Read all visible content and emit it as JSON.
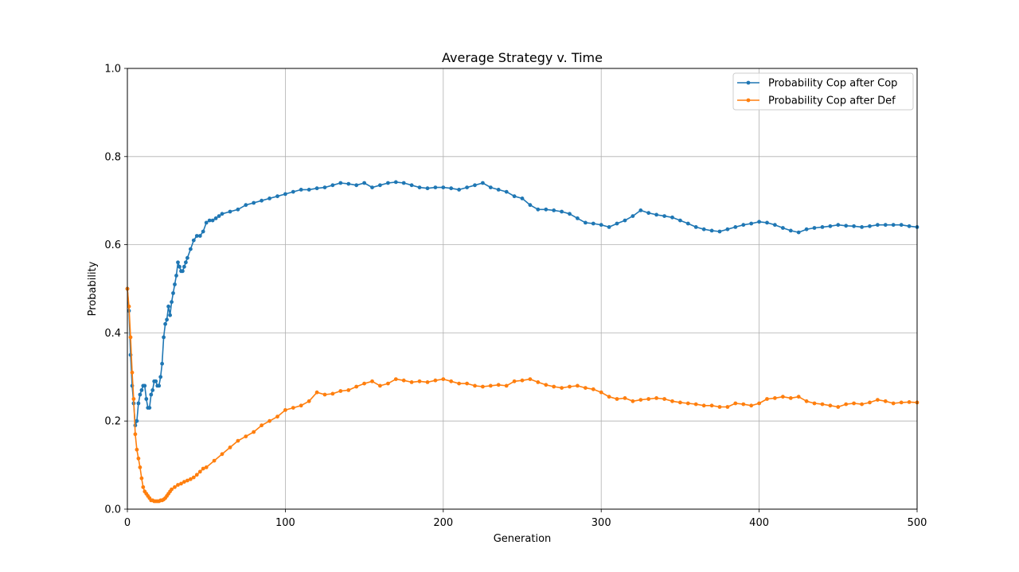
{
  "chart_data": {
    "type": "line",
    "title": "Average Strategy v. Time",
    "xlabel": "Generation",
    "ylabel": "Probability",
    "xlim": [
      0,
      500
    ],
    "ylim": [
      0,
      1.0
    ],
    "x_ticks": [
      "0",
      "100",
      "200",
      "300",
      "400",
      "500"
    ],
    "y_ticks": [
      "0.0",
      "0.2",
      "0.4",
      "0.6",
      "0.8",
      "1.0"
    ],
    "grid": true,
    "legend_position": "top-right",
    "series": [
      {
        "name": "Probability Cop after Cop",
        "color": "#1f77b4",
        "x": [
          0,
          1,
          2,
          3,
          4,
          5,
          6,
          7,
          8,
          9,
          10,
          11,
          12,
          13,
          14,
          15,
          16,
          17,
          18,
          19,
          20,
          21,
          22,
          23,
          24,
          25,
          26,
          27,
          28,
          29,
          30,
          31,
          32,
          33,
          34,
          35,
          36,
          37,
          38,
          40,
          42,
          44,
          46,
          48,
          50,
          52,
          54,
          56,
          58,
          60,
          65,
          70,
          75,
          80,
          85,
          90,
          95,
          100,
          105,
          110,
          115,
          120,
          125,
          130,
          135,
          140,
          145,
          150,
          155,
          160,
          165,
          170,
          175,
          180,
          185,
          190,
          195,
          200,
          205,
          210,
          215,
          220,
          225,
          230,
          235,
          240,
          245,
          250,
          255,
          260,
          265,
          270,
          275,
          280,
          285,
          290,
          295,
          300,
          305,
          310,
          315,
          320,
          325,
          330,
          335,
          340,
          345,
          350,
          355,
          360,
          365,
          370,
          375,
          380,
          385,
          390,
          395,
          400,
          405,
          410,
          415,
          420,
          425,
          430,
          435,
          440,
          445,
          450,
          455,
          460,
          465,
          470,
          475,
          480,
          485,
          490,
          495,
          500
        ],
        "y": [
          0.5,
          0.45,
          0.35,
          0.28,
          0.24,
          0.19,
          0.2,
          0.24,
          0.26,
          0.27,
          0.28,
          0.28,
          0.25,
          0.23,
          0.23,
          0.26,
          0.27,
          0.29,
          0.29,
          0.28,
          0.28,
          0.3,
          0.33,
          0.39,
          0.42,
          0.43,
          0.46,
          0.44,
          0.47,
          0.49,
          0.51,
          0.53,
          0.56,
          0.55,
          0.54,
          0.54,
          0.55,
          0.56,
          0.57,
          0.59,
          0.61,
          0.62,
          0.62,
          0.63,
          0.65,
          0.655,
          0.655,
          0.66,
          0.665,
          0.67,
          0.675,
          0.68,
          0.69,
          0.695,
          0.7,
          0.705,
          0.71,
          0.715,
          0.72,
          0.725,
          0.725,
          0.728,
          0.73,
          0.735,
          0.74,
          0.738,
          0.735,
          0.74,
          0.73,
          0.735,
          0.74,
          0.742,
          0.74,
          0.735,
          0.73,
          0.728,
          0.73,
          0.73,
          0.728,
          0.725,
          0.73,
          0.735,
          0.74,
          0.73,
          0.725,
          0.72,
          0.71,
          0.705,
          0.69,
          0.68,
          0.68,
          0.678,
          0.675,
          0.67,
          0.66,
          0.65,
          0.648,
          0.645,
          0.64,
          0.648,
          0.655,
          0.665,
          0.678,
          0.672,
          0.668,
          0.665,
          0.662,
          0.655,
          0.648,
          0.64,
          0.635,
          0.632,
          0.63,
          0.635,
          0.64,
          0.645,
          0.648,
          0.652,
          0.65,
          0.645,
          0.638,
          0.632,
          0.628,
          0.635,
          0.638,
          0.64,
          0.642,
          0.645,
          0.643,
          0.642,
          0.64,
          0.642,
          0.645,
          0.645,
          0.645,
          0.645,
          0.642,
          0.64
        ]
      },
      {
        "name": "Probability Cop after Def",
        "color": "#ff7f0e",
        "x": [
          0,
          1,
          2,
          3,
          4,
          5,
          6,
          7,
          8,
          9,
          10,
          11,
          12,
          13,
          14,
          15,
          16,
          17,
          18,
          19,
          20,
          21,
          22,
          23,
          24,
          25,
          26,
          27,
          28,
          30,
          32,
          34,
          36,
          38,
          40,
          42,
          44,
          46,
          48,
          50,
          55,
          60,
          65,
          70,
          75,
          80,
          85,
          90,
          95,
          100,
          105,
          110,
          115,
          120,
          125,
          130,
          135,
          140,
          145,
          150,
          155,
          160,
          165,
          170,
          175,
          180,
          185,
          190,
          195,
          200,
          205,
          210,
          215,
          220,
          225,
          230,
          235,
          240,
          245,
          250,
          255,
          260,
          265,
          270,
          275,
          280,
          285,
          290,
          295,
          300,
          305,
          310,
          315,
          320,
          325,
          330,
          335,
          340,
          345,
          350,
          355,
          360,
          365,
          370,
          375,
          380,
          385,
          390,
          395,
          400,
          405,
          410,
          415,
          420,
          425,
          430,
          435,
          440,
          445,
          450,
          455,
          460,
          465,
          470,
          475,
          480,
          485,
          490,
          495,
          500
        ],
        "y": [
          0.5,
          0.46,
          0.39,
          0.31,
          0.25,
          0.17,
          0.135,
          0.115,
          0.095,
          0.07,
          0.05,
          0.04,
          0.035,
          0.03,
          0.025,
          0.02,
          0.02,
          0.018,
          0.018,
          0.018,
          0.018,
          0.02,
          0.02,
          0.022,
          0.025,
          0.03,
          0.035,
          0.04,
          0.045,
          0.05,
          0.055,
          0.058,
          0.062,
          0.065,
          0.068,
          0.072,
          0.078,
          0.085,
          0.092,
          0.095,
          0.11,
          0.125,
          0.14,
          0.155,
          0.165,
          0.175,
          0.19,
          0.2,
          0.21,
          0.225,
          0.23,
          0.235,
          0.245,
          0.265,
          0.26,
          0.262,
          0.268,
          0.27,
          0.278,
          0.285,
          0.29,
          0.28,
          0.285,
          0.295,
          0.292,
          0.288,
          0.29,
          0.288,
          0.292,
          0.295,
          0.29,
          0.285,
          0.285,
          0.28,
          0.278,
          0.28,
          0.282,
          0.28,
          0.29,
          0.292,
          0.295,
          0.288,
          0.282,
          0.278,
          0.275,
          0.278,
          0.28,
          0.275,
          0.272,
          0.265,
          0.255,
          0.25,
          0.252,
          0.245,
          0.248,
          0.25,
          0.252,
          0.25,
          0.245,
          0.242,
          0.24,
          0.238,
          0.235,
          0.235,
          0.232,
          0.232,
          0.24,
          0.238,
          0.235,
          0.24,
          0.25,
          0.252,
          0.255,
          0.252,
          0.255,
          0.245,
          0.24,
          0.238,
          0.235,
          0.232,
          0.238,
          0.24,
          0.238,
          0.242,
          0.248,
          0.245,
          0.24,
          0.242,
          0.243,
          0.242
        ]
      }
    ]
  }
}
